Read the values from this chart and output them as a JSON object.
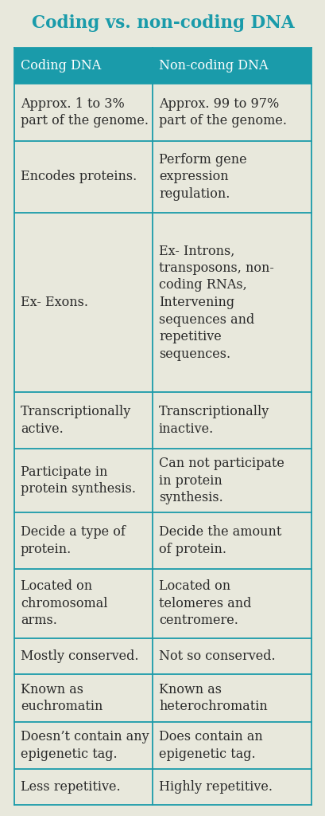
{
  "title": "Coding vs. non-coding DNA",
  "title_color": "#1a9baa",
  "background_color": "#e8e8dc",
  "header_bg_color": "#1a9baa",
  "header_text_color": "#ffffff",
  "cell_bg_color": "#e8e8dc",
  "border_color": "#1a9baa",
  "text_color": "#2a2a2a",
  "col1_header": "Coding DNA",
  "col2_header": "Non-coding DNA",
  "rows": [
    [
      "Approx. 1 to 3%\npart of the genome.",
      "Approx. 99 to 97%\npart of the genome."
    ],
    [
      "Encodes proteins.",
      "Perform gene\nexpression\nregulation."
    ],
    [
      "Ex- Exons.",
      "Ex- Introns,\ntransposons, non-\ncoding RNAs,\nIntervening\nsequences and\nrepetitive\nsequences."
    ],
    [
      "Transcriptionally\nactive.",
      "Transcriptionally\ninactive."
    ],
    [
      "Participate in\nprotein synthesis.",
      "Can not participate\nin protein\nsynthesis."
    ],
    [
      "Decide a type of\nprotein.",
      "Decide the amount\nof protein."
    ],
    [
      "Located on\nchromosomal\narms.",
      "Located on\ntelomeres and\ncentromere."
    ],
    [
      "Mostly conserved.",
      "Not so conserved."
    ],
    [
      "Known as\neuchromatin",
      "Known as\nheterochromatin"
    ],
    [
      "Doesn’t contain any\nepigenetic tag.",
      "Does contain an\nepigenetic tag."
    ],
    [
      "Less repetitive.",
      "Highly repetitive."
    ]
  ],
  "title_fontsize": 15.5,
  "header_fontsize": 11.5,
  "cell_fontsize": 11.5,
  "row_heights_rel": [
    1.05,
    1.65,
    2.1,
    5.2,
    1.65,
    1.85,
    1.65,
    2.0,
    1.05,
    1.4,
    1.35,
    1.05
  ],
  "figsize": [
    4.1,
    10.24
  ],
  "dpi": 100
}
